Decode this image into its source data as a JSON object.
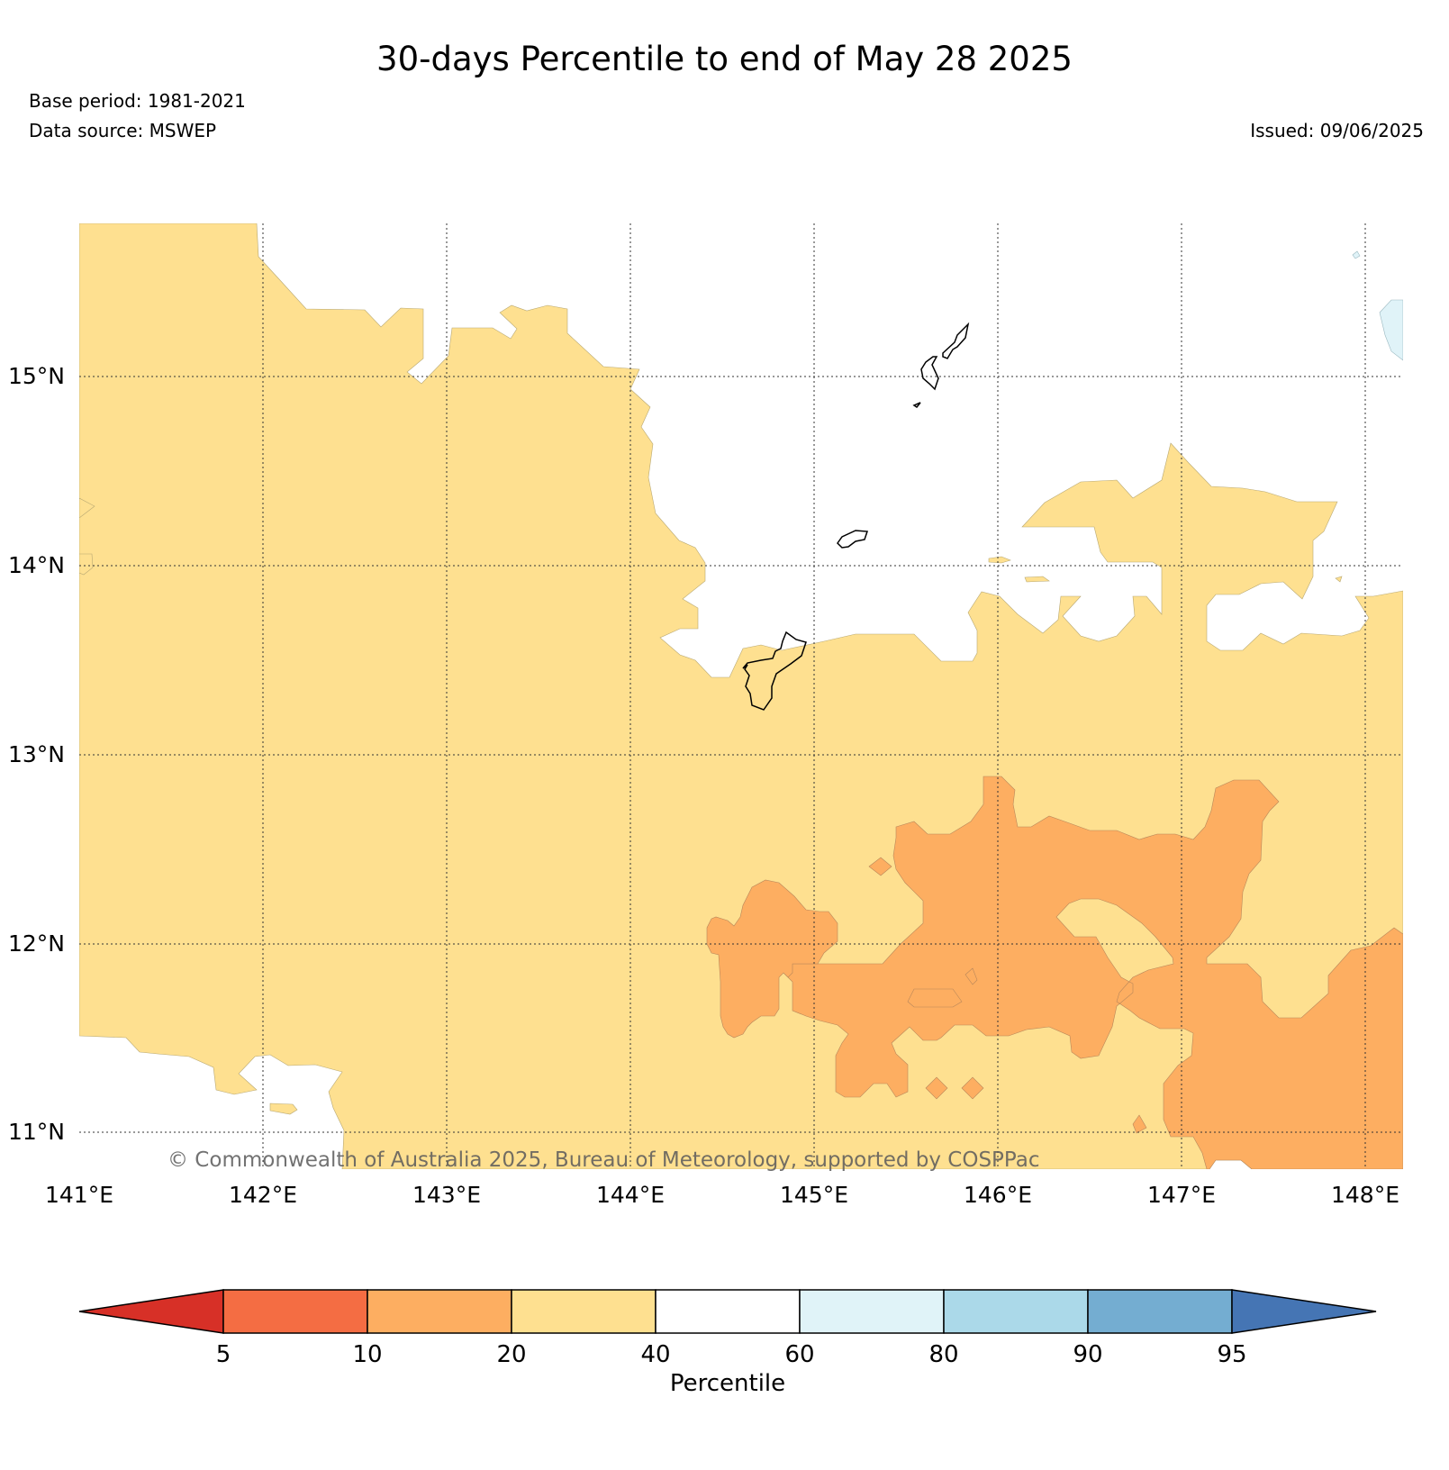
{
  "title": "30-days Percentile to end of May 28 2025",
  "base_period": "Base period: 1981-2021",
  "data_source": "Data source: MSWEP",
  "issued": "Issued: 09/06/2025",
  "copyright": "© Commonwealth of Australia 2025, Bureau of Meteorology, supported by COSPPac",
  "map": {
    "lon_range": [
      141,
      148.2
    ],
    "lat_range": [
      10.8,
      15.8
    ],
    "lat_ticks": [
      {
        "value": 15,
        "label": "15°N"
      },
      {
        "value": 14,
        "label": "14°N"
      },
      {
        "value": 13,
        "label": "13°N"
      },
      {
        "value": 12,
        "label": "12°N"
      },
      {
        "value": 11,
        "label": "11°N"
      }
    ],
    "lon_ticks": [
      {
        "value": 141,
        "label": "141°E"
      },
      {
        "value": 142,
        "label": "142°E"
      },
      {
        "value": 143,
        "label": "143°E"
      },
      {
        "value": 144,
        "label": "144°E"
      },
      {
        "value": 145,
        "label": "145°E"
      },
      {
        "value": 146,
        "label": "146°E"
      },
      {
        "value": 147,
        "label": "147°E"
      },
      {
        "value": 148,
        "label": "148°E"
      }
    ],
    "gridlines": true,
    "islands": [
      "Guam",
      "Rota",
      "Tinian",
      "Saipan"
    ]
  },
  "colorbar": {
    "label": "Percentile",
    "ticks": [
      "5",
      "10",
      "20",
      "40",
      "60",
      "80",
      "90",
      "95"
    ],
    "colors": {
      "lt5": "#d73027",
      "5-10": "#f46d43",
      "10-20": "#fdae61",
      "20-40": "#fee090",
      "40-60": "#ffffff",
      "60-80": "#e0f3f8",
      "80-90": "#abd9e9",
      "90-95": "#74add1",
      "gt95": "#4575b4"
    }
  }
}
